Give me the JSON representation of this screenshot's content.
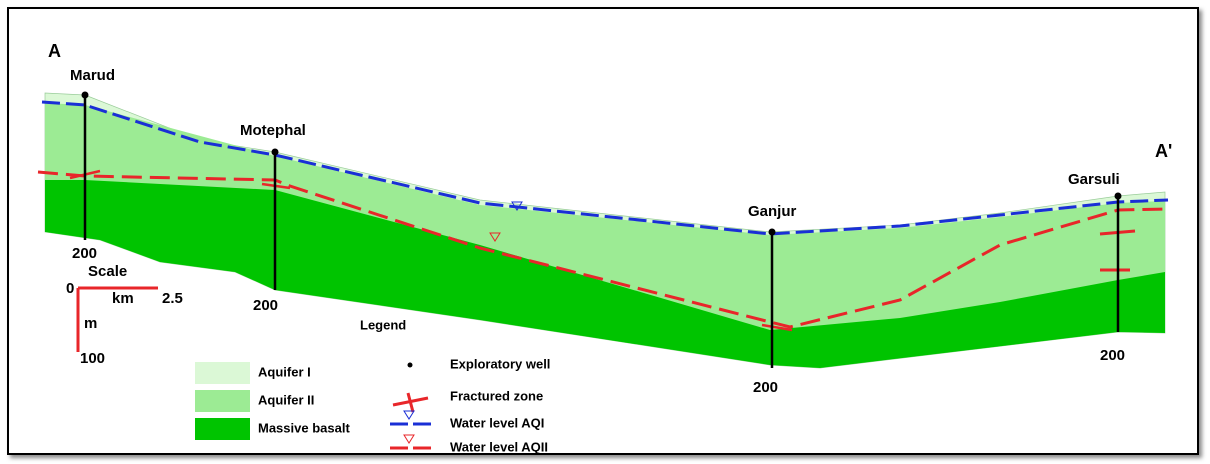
{
  "section_ends": [
    "A",
    "A'"
  ],
  "wells": [
    {
      "name": "Marud",
      "depth": "200"
    },
    {
      "name": "Motephal",
      "depth": "200"
    },
    {
      "name": "Ganjur",
      "depth": "200"
    },
    {
      "name": "Garsuli",
      "depth": "200"
    }
  ],
  "scale": {
    "title": "Scale",
    "origin": "0",
    "km_unit": "km",
    "km_value": "2.5",
    "m_unit": "m",
    "m_value": "100"
  },
  "legend": {
    "title": "Legend",
    "items": [
      "Aquifer I",
      "Aquifer II",
      "Massive basalt",
      "Exploratory well",
      "Fractured zone",
      "Water level AQI",
      "Water level AQII"
    ]
  }
}
